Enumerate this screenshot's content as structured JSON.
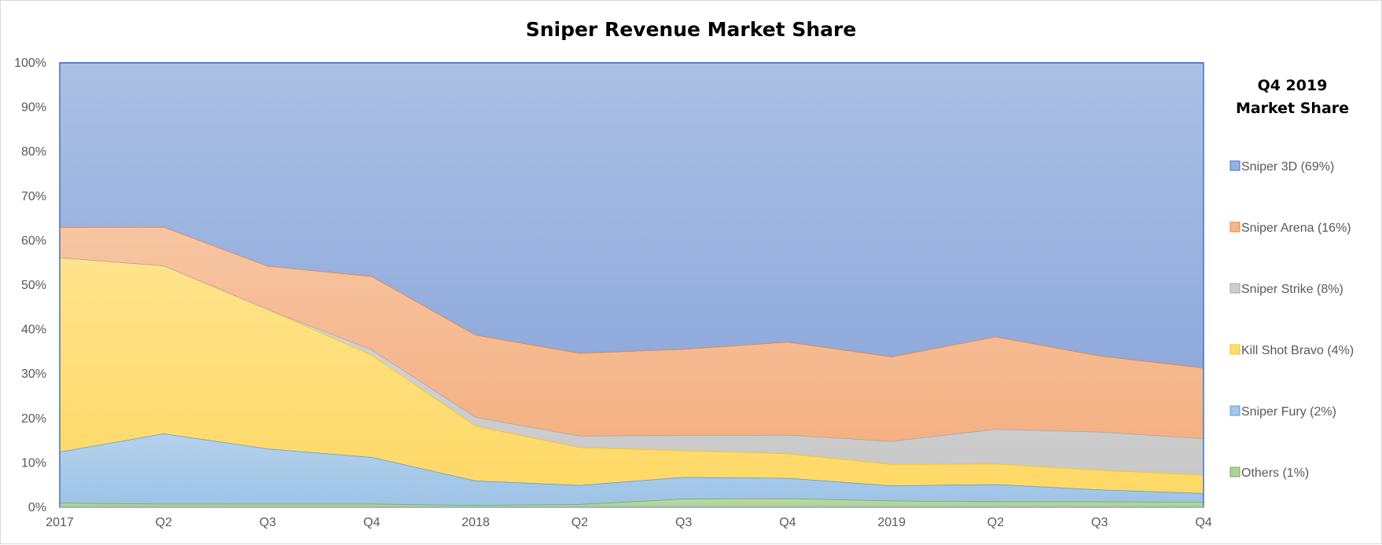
{
  "chart_data": {
    "type": "area",
    "stacking": "percent",
    "title": "Sniper Revenue Market Share",
    "xlabel": "",
    "ylabel": "",
    "ylim": [
      0,
      100
    ],
    "yticks": [
      "0%",
      "10%",
      "20%",
      "30%",
      "40%",
      "50%",
      "60%",
      "70%",
      "80%",
      "90%",
      "100%"
    ],
    "categories": [
      "2017",
      "Q2",
      "Q3",
      "Q4",
      "2018",
      "Q2",
      "Q3",
      "Q4",
      "2019",
      "Q2",
      "Q3",
      "Q4"
    ],
    "legend_title": [
      "Q4 2019",
      "Market Share"
    ],
    "legend_position": "right",
    "series": [
      {
        "name": "Others",
        "legend_label": "Others (1%)",
        "color": "#70ad47",
        "values": [
          1.0,
          0.8,
          0.8,
          0.8,
          0.5,
          0.7,
          1.9,
          2.0,
          1.5,
          1.3,
          1.3,
          1.2
        ]
      },
      {
        "name": "Sniper Fury",
        "legend_label": "Sniper Fury (2%)",
        "color": "#5b9bd5",
        "values": [
          11.5,
          15.8,
          12.4,
          10.5,
          5.5,
          4.3,
          4.9,
          4.6,
          3.4,
          3.9,
          2.7,
          2.0
        ]
      },
      {
        "name": "Kill Shot Bravo",
        "legend_label": "Kill Shot Bravo (4%)",
        "color": "#ffc000",
        "values": [
          43.7,
          37.8,
          31.4,
          23.0,
          12.3,
          8.5,
          6.0,
          5.5,
          4.8,
          4.6,
          4.4,
          4.1
        ]
      },
      {
        "name": "Sniper Strike",
        "legend_label": "Sniper Strike (8%)",
        "color": "#a5a5a5",
        "values": [
          0.0,
          0.0,
          0.0,
          1.2,
          2.0,
          2.6,
          3.4,
          4.2,
          5.2,
          7.8,
          8.6,
          8.2
        ]
      },
      {
        "name": "Sniper Arena",
        "legend_label": "Sniper Arena (16%)",
        "color": "#ed7d31",
        "values": [
          6.8,
          8.7,
          9.7,
          16.5,
          18.5,
          18.6,
          19.4,
          20.9,
          19.0,
          20.8,
          17.1,
          15.9
        ]
      },
      {
        "name": "Sniper 3D",
        "legend_label": "Sniper 3D (69%)",
        "color": "#4472c4",
        "values": [
          37.0,
          36.9,
          45.7,
          48.0,
          61.2,
          65.3,
          64.4,
          62.8,
          66.1,
          61.6,
          65.9,
          68.6
        ]
      }
    ]
  }
}
